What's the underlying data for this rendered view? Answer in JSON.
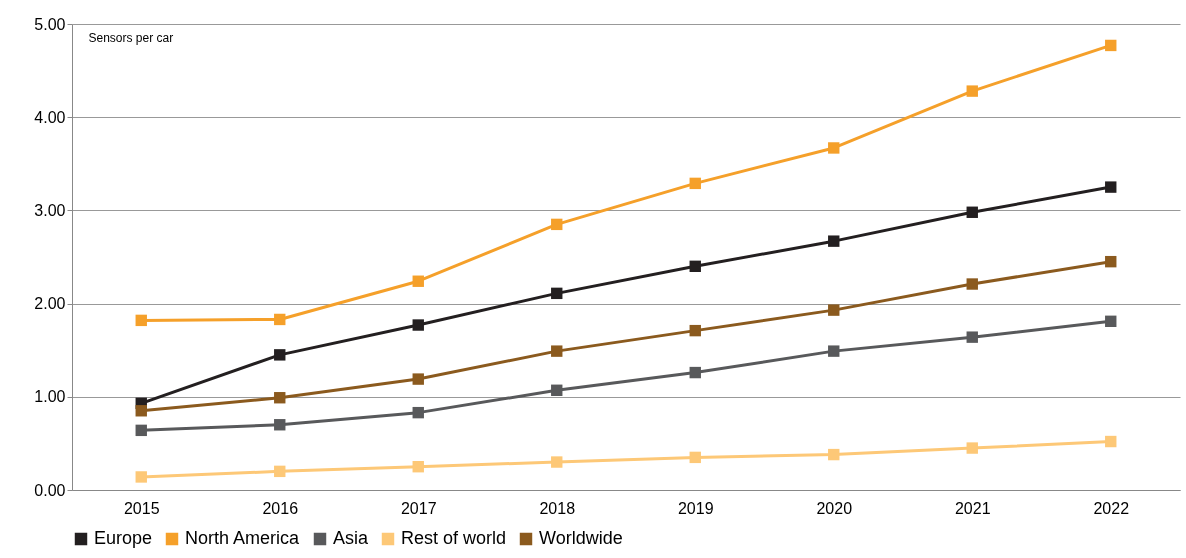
{
  "chart_data": {
    "type": "line",
    "ylabel": "Sensors per car",
    "categories": [
      "2015",
      "2016",
      "2017",
      "2018",
      "2019",
      "2020",
      "2021",
      "2022"
    ],
    "series": [
      {
        "name": "Europe",
        "color": "#231f20",
        "values": [
          0.93,
          1.45,
          1.77,
          2.11,
          2.4,
          2.67,
          2.98,
          3.25
        ]
      },
      {
        "name": "North America",
        "color": "#f5a02a",
        "values": [
          1.82,
          1.83,
          2.24,
          2.85,
          3.29,
          3.67,
          4.28,
          4.77
        ]
      },
      {
        "name": "Asia",
        "color": "#58595b",
        "values": [
          0.64,
          0.7,
          0.83,
          1.07,
          1.26,
          1.49,
          1.64,
          1.81
        ]
      },
      {
        "name": "Rest of world",
        "color": "#fdc877",
        "values": [
          0.14,
          0.2,
          0.25,
          0.3,
          0.35,
          0.38,
          0.45,
          0.52
        ]
      },
      {
        "name": "Worldwide",
        "color": "#8b5a1e",
        "values": [
          0.85,
          0.99,
          1.19,
          1.49,
          1.71,
          1.93,
          2.21,
          2.45
        ]
      }
    ],
    "ylim": [
      0,
      5
    ],
    "yticks": [
      {
        "value": 0,
        "label": "0.00"
      },
      {
        "value": 1,
        "label": "1.00"
      },
      {
        "value": 2,
        "label": "2.00"
      },
      {
        "value": 3,
        "label": "3.00"
      },
      {
        "value": 4,
        "label": "4.00"
      },
      {
        "value": 5,
        "label": "5.00"
      }
    ],
    "grid": "y",
    "legend": "bottom",
    "marker": "square",
    "line_style": "solid"
  }
}
